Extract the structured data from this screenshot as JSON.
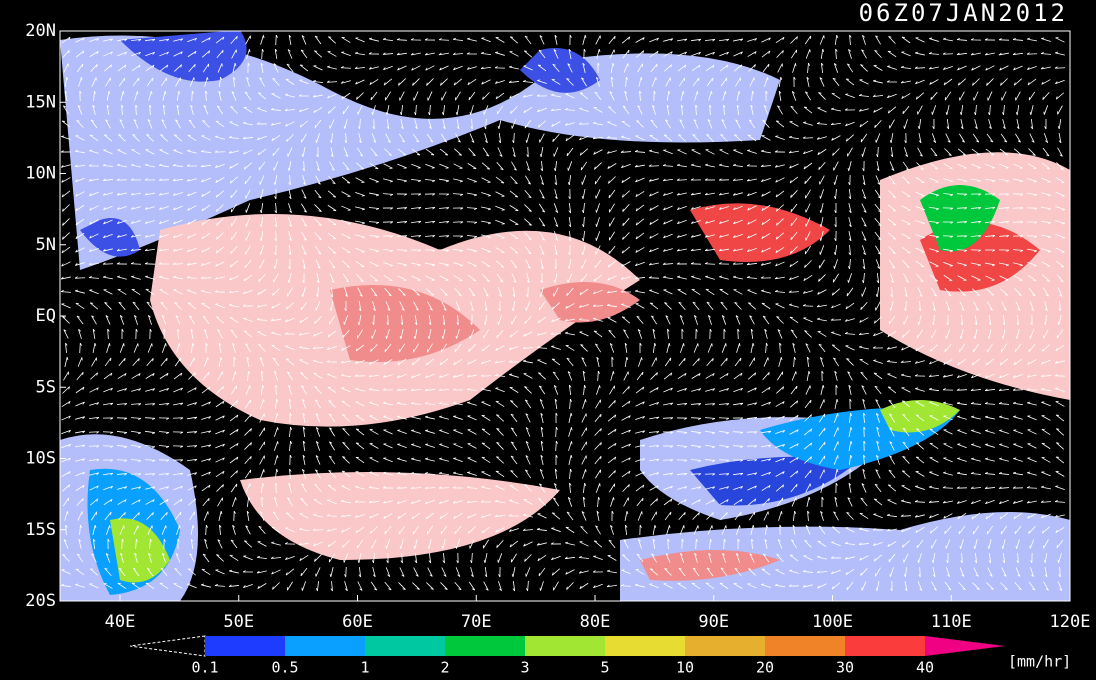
{
  "title": "06Z07JAN2012",
  "lat_labels": [
    "20N",
    "15N",
    "10N",
    "5N",
    "EQ",
    "5S",
    "10S",
    "15S",
    "20S"
  ],
  "lon_labels": [
    "40E",
    "50E",
    "60E",
    "70E",
    "80E",
    "90E",
    "100E",
    "110E",
    "120E"
  ],
  "colorbar": {
    "labels": [
      "0.1",
      "0.5",
      "1",
      "2",
      "3",
      "5",
      "10",
      "20",
      "30",
      "40"
    ],
    "colors": [
      "#1e3cff",
      "#0aa0ff",
      "#00c8a0",
      "#00c83c",
      "#a0e632",
      "#e6dc32",
      "#e6af2d",
      "#f08228",
      "#fa3c3c",
      "#f00082"
    ],
    "unit": "[mm/hr]"
  }
}
